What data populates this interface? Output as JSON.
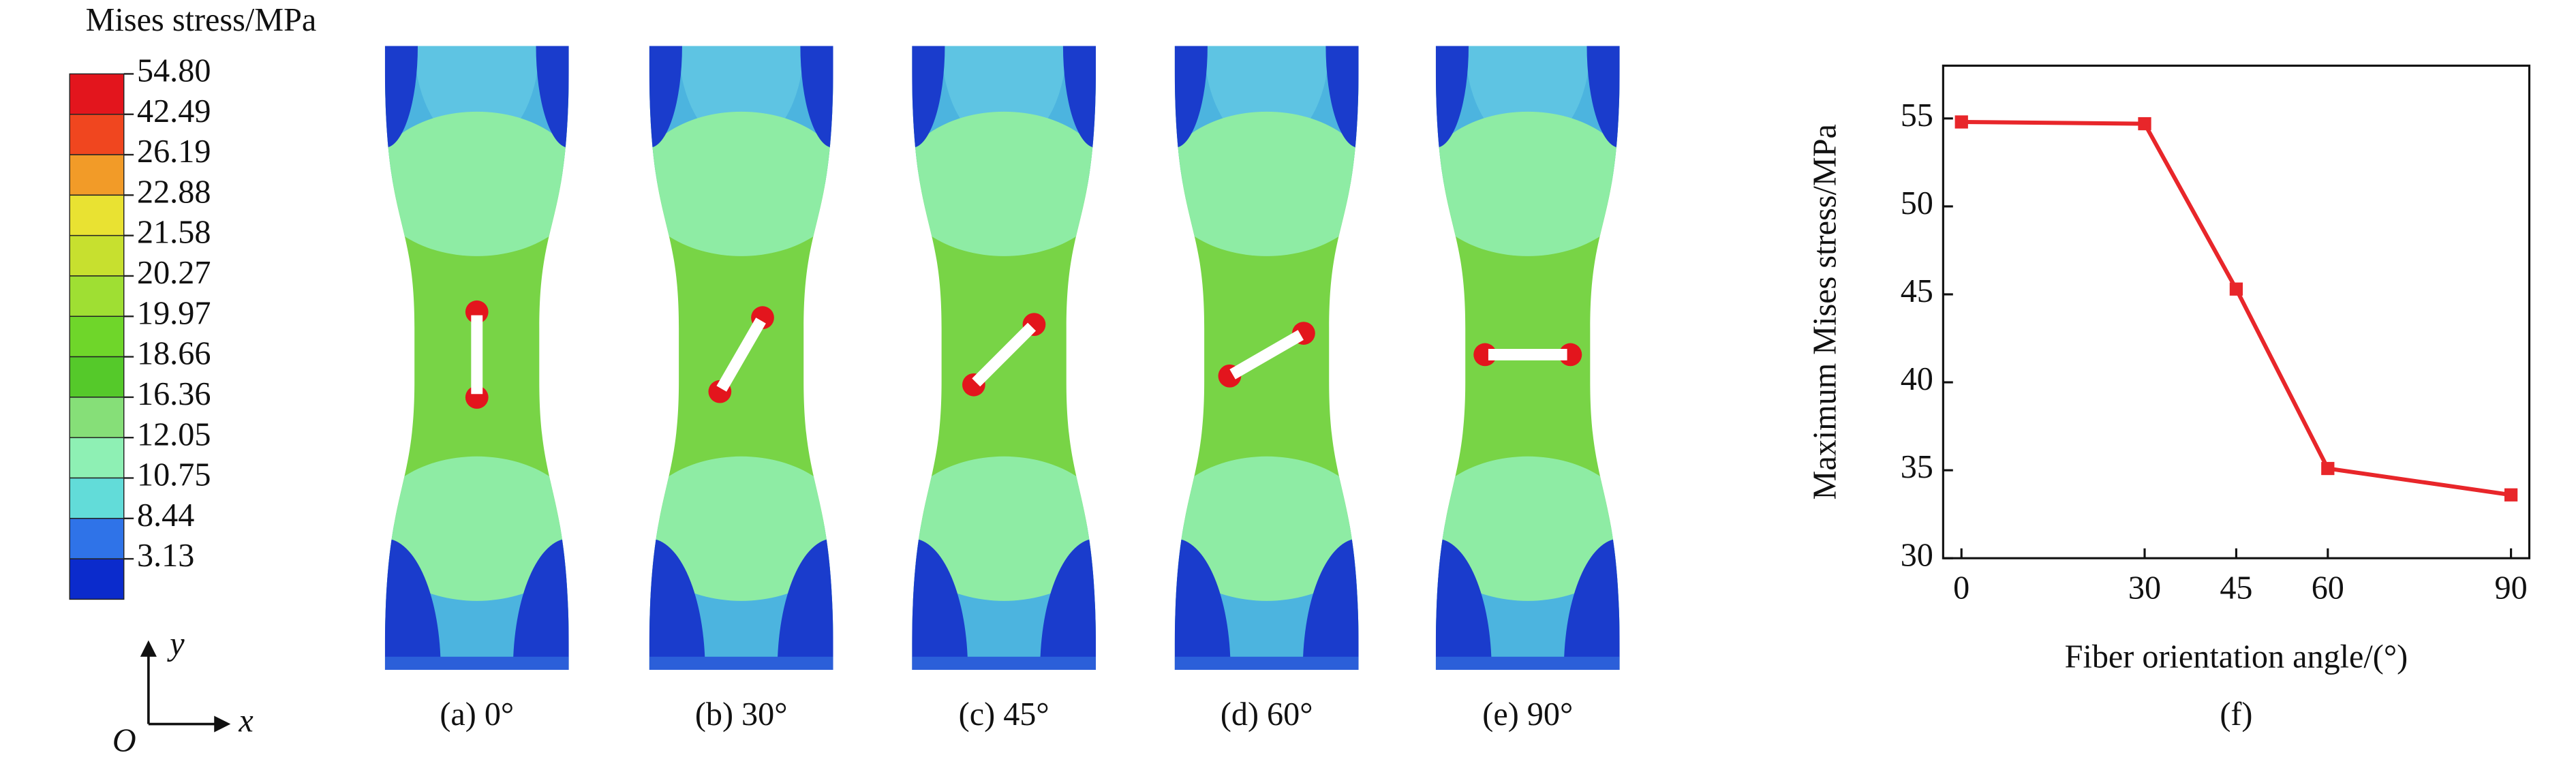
{
  "legend": {
    "title": "Mises stress/MPa",
    "ticks": [
      "54.80",
      "42.49",
      "26.19",
      "22.88",
      "21.58",
      "20.27",
      "19.97",
      "18.66",
      "16.36",
      "12.05",
      "10.75",
      "8.44",
      "3.13"
    ],
    "colors": [
      "#e3151d",
      "#f0461f",
      "#f29b28",
      "#e9e232",
      "#c7e02f",
      "#9fdf33",
      "#6fd62a",
      "#55c92a",
      "#86df78",
      "#8ef0b4",
      "#62dcd9",
      "#2f73e8",
      "#0b2bcc"
    ],
    "axis_y": "y",
    "axis_x": "x",
    "origin": "O"
  },
  "panels": [
    {
      "caption": "(a) 0°"
    },
    {
      "caption": "(b) 30°"
    },
    {
      "caption": "(c) 45°"
    },
    {
      "caption": "(d) 60°"
    },
    {
      "caption": "(e) 90°"
    }
  ],
  "chart_data": {
    "type": "line",
    "title": "(f)",
    "x_label": "Fiber orientation angle/(°)",
    "y_label": "Maximum Mises stress/MPa",
    "x": [
      0,
      30,
      45,
      60,
      90
    ],
    "values": [
      54.8,
      54.7,
      45.3,
      35.1,
      33.6
    ],
    "color": "#e8262a",
    "xlim": [
      -3,
      93
    ],
    "ylim": [
      30,
      58
    ],
    "xticks": [
      0,
      30,
      45,
      60,
      90
    ],
    "yticks": [
      30,
      35,
      40,
      45,
      50,
      55
    ]
  }
}
